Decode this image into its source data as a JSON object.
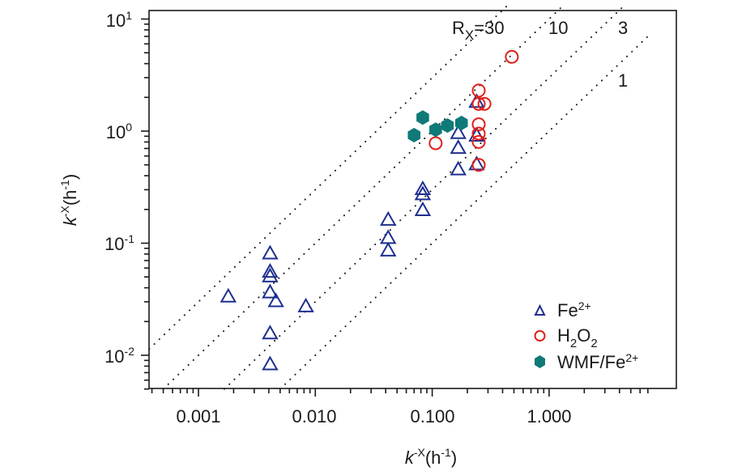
{
  "chart_data": {
    "type": "scatter",
    "title": "",
    "xlabel": {
      "base": "k",
      "sup": "-X",
      "unit": "(h",
      "unit_sup": "-1",
      "close": ")"
    },
    "ylabel": {
      "base": "k",
      "sup": "-X",
      "unit": "(h",
      "unit_sup": "-1",
      "close": ")"
    },
    "x_scale": "log",
    "y_scale": "log",
    "xlim": [
      0.00038,
      7.5
    ],
    "ylim": [
      0.005,
      13
    ],
    "grid": false,
    "x_ticks": [
      {
        "value": 0.001,
        "label": "0.001"
      },
      {
        "value": 0.01,
        "label": "0.010"
      },
      {
        "value": 0.1,
        "label": "0.100"
      },
      {
        "value": 1,
        "label": "1.000"
      }
    ],
    "y_ticks": [
      {
        "value": 10,
        "base": "10",
        "exp": "1"
      },
      {
        "value": 1,
        "base": "10",
        "exp": "0"
      },
      {
        "value": 0.1,
        "base": "10",
        "exp": "-1"
      },
      {
        "value": 0.01,
        "base": "10",
        "exp": "-2"
      }
    ],
    "reference_lines": [
      {
        "ratio": 30,
        "label": "R",
        "label_sub": "X",
        "label_rest": "=30"
      },
      {
        "ratio": 10,
        "label": "10"
      },
      {
        "ratio": 3,
        "label": "3"
      },
      {
        "ratio": 1,
        "label": "1"
      }
    ],
    "legend_position": "bottom-right",
    "series": [
      {
        "name": "Fe2+",
        "legend": {
          "base": "Fe",
          "sup": "2+"
        },
        "marker": "triangle-open",
        "color": "#1f2f8f",
        "points": [
          [
            0.0018,
            0.033
          ],
          [
            0.0041,
            0.08
          ],
          [
            0.0041,
            0.055
          ],
          [
            0.0041,
            0.05
          ],
          [
            0.0041,
            0.036
          ],
          [
            0.0046,
            0.03
          ],
          [
            0.0041,
            0.0155
          ],
          [
            0.0041,
            0.0082
          ],
          [
            0.0083,
            0.027
          ],
          [
            0.042,
            0.16
          ],
          [
            0.042,
            0.11
          ],
          [
            0.042,
            0.085
          ],
          [
            0.083,
            0.3
          ],
          [
            0.083,
            0.27
          ],
          [
            0.083,
            0.195
          ],
          [
            0.167,
            0.95
          ],
          [
            0.167,
            0.7
          ],
          [
            0.167,
            0.45
          ],
          [
            0.24,
            1.8
          ],
          [
            0.24,
            0.9
          ],
          [
            0.24,
            0.5
          ]
        ]
      },
      {
        "name": "H2O2",
        "legend": {
          "base": "H",
          "sub1": "2",
          "mid": "O",
          "sub2": "2"
        },
        "marker": "circle-open",
        "color": "#e0201a",
        "points": [
          [
            0.48,
            4.6
          ],
          [
            0.25,
            2.3
          ],
          [
            0.25,
            1.75
          ],
          [
            0.28,
            1.75
          ],
          [
            0.25,
            1.15
          ],
          [
            0.25,
            0.95
          ],
          [
            0.25,
            0.8
          ],
          [
            0.25,
            0.5
          ],
          [
            0.107,
            0.78
          ]
        ]
      },
      {
        "name": "WMF/Fe2+",
        "legend": {
          "base": "WMF/Fe",
          "sup": "2+"
        },
        "marker": "hexagon-filled",
        "color": "#0f7a78",
        "points": [
          [
            0.07,
            0.92
          ],
          [
            0.083,
            1.32
          ],
          [
            0.107,
            1.03
          ],
          [
            0.135,
            1.12
          ],
          [
            0.178,
            1.18
          ]
        ]
      }
    ]
  }
}
